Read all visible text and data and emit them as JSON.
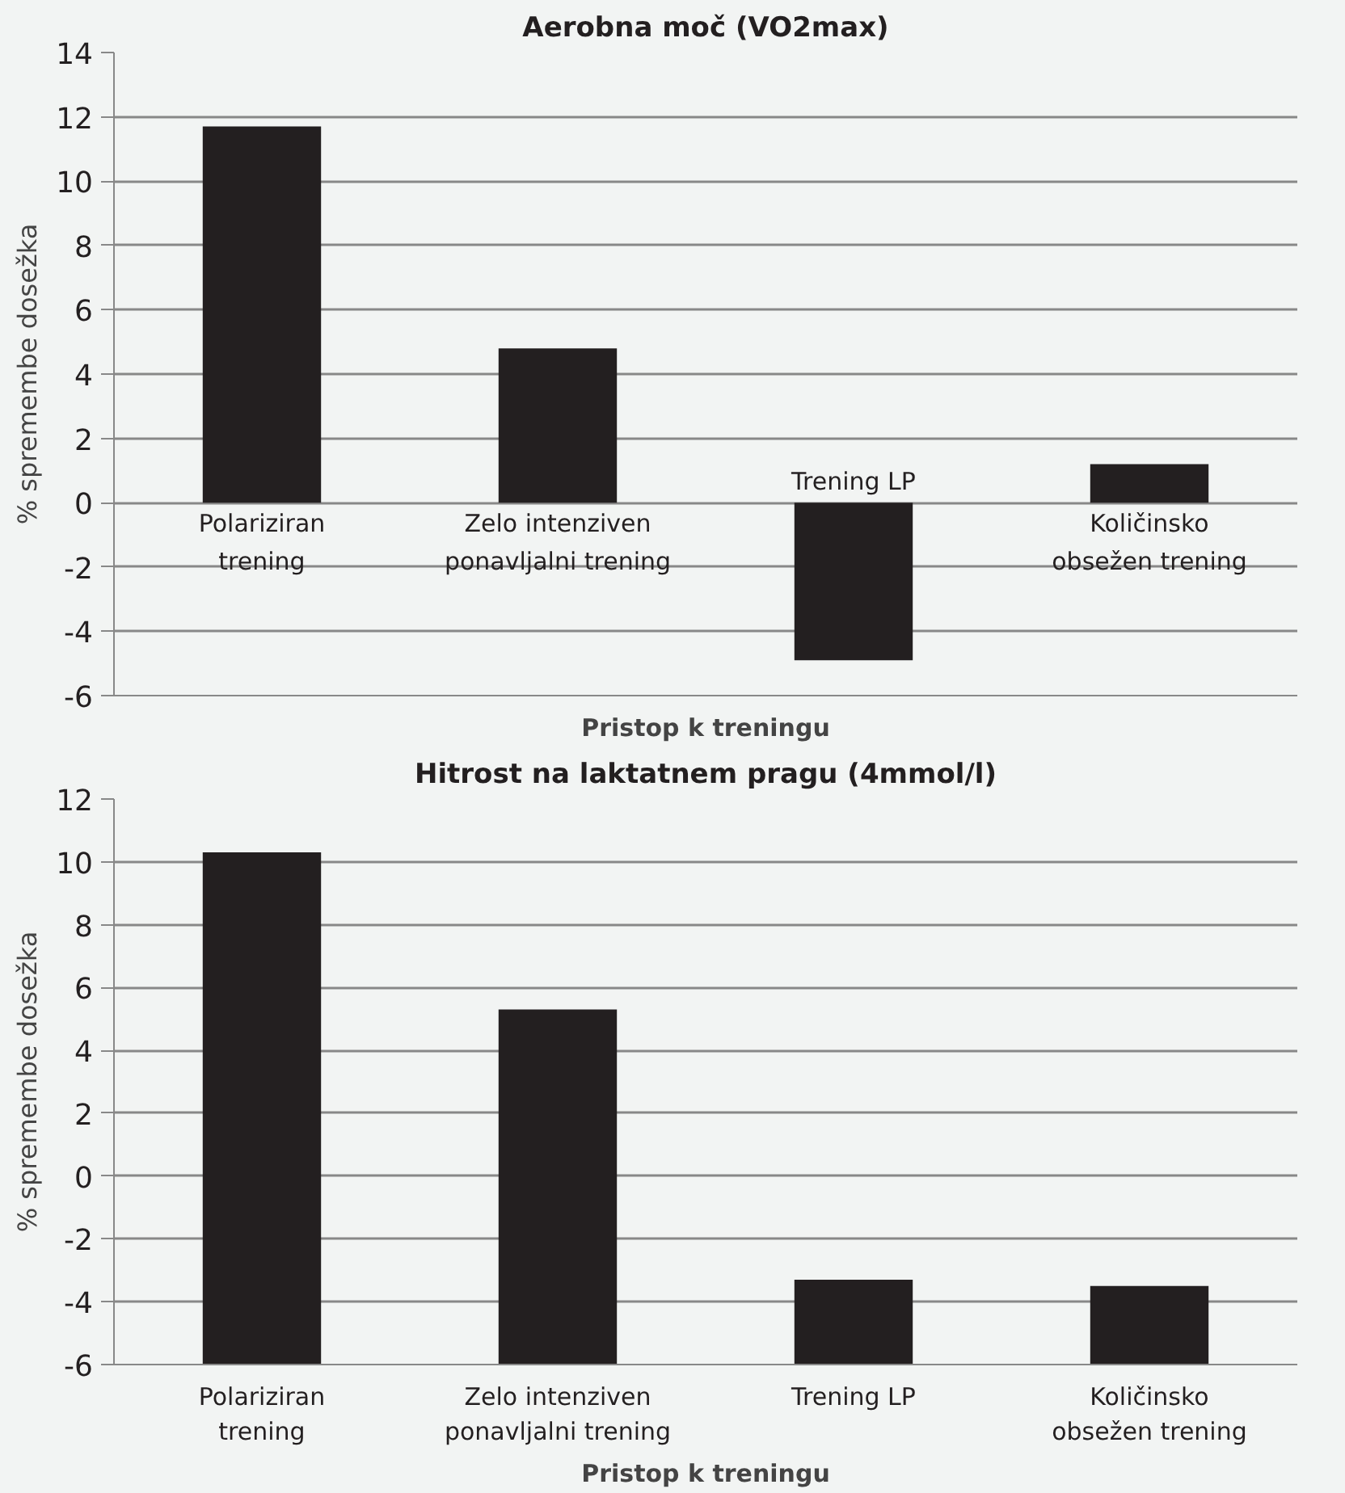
{
  "chart_data": [
    {
      "type": "bar",
      "title": "Aerobna moč (VO2max)",
      "xlabel": "Pristop k treningu",
      "ylabel": "% spremembe dosežka",
      "categories": [
        "Polariziran\ntrening",
        "Zelo intenziven\nponavljalni trening",
        "Trening LP",
        "Količinsko\nobsežen trening"
      ],
      "values": [
        11.7,
        4.8,
        -4.9,
        1.2
      ],
      "color": "#231f20",
      "ylim": [
        -6,
        14
      ],
      "yticks": [
        -6,
        -4,
        -2,
        0,
        2,
        4,
        6,
        8,
        10,
        12,
        14
      ],
      "grid": "y"
    },
    {
      "type": "bar",
      "title": "Hitrost na laktatnem pragu (4mmol/l)",
      "xlabel": "Pristop k treningu",
      "ylabel": "% spremembe dosežka",
      "categories": [
        "Polariziran\ntrening",
        "Zelo intenziven\nponavljalni trening",
        "Trening LP",
        "Količinsko\nobsežen trening"
      ],
      "values": [
        16.3,
        11.3,
        2.7,
        2.5
      ],
      "base": [
        -6,
        -6,
        -6,
        -6
      ],
      "color": "#231f20",
      "ylim": [
        -6,
        12
      ],
      "yticks": [
        -6,
        -4,
        -2,
        0,
        2,
        4,
        6,
        8,
        10,
        12
      ],
      "grid": "y"
    }
  ]
}
